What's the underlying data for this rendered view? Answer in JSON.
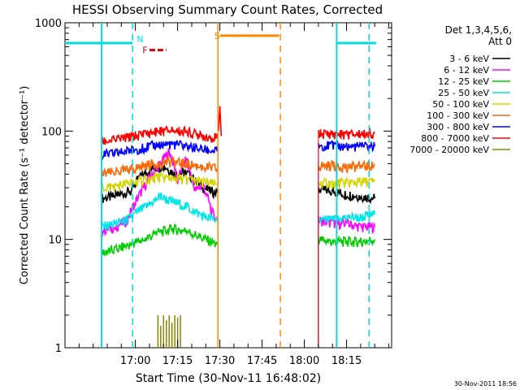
{
  "chart_data": {
    "type": "line",
    "title": "HESSI Observing Summary Count Rates, Corrected",
    "xlabel": "Start Time (30-Nov-11 16:48:02)",
    "ylabel": "Corrected Count Rate (s⁻¹ detector⁻¹)",
    "ylog": true,
    "ylim": [
      1,
      1000
    ],
    "xlim_minutes": [
      -13,
      103
    ],
    "x_ticks": [
      {
        "m": 12,
        "label": "17:00"
      },
      {
        "m": 27,
        "label": "17:15"
      },
      {
        "m": 42,
        "label": "17:30"
      },
      {
        "m": 57,
        "label": "17:45"
      },
      {
        "m": 72,
        "label": "18:00"
      },
      {
        "m": 87,
        "label": "18:15"
      }
    ],
    "y_ticks": [
      {
        "v": 1,
        "label": "1"
      },
      {
        "v": 10,
        "label": "10"
      },
      {
        "v": 100,
        "label": "100"
      },
      {
        "v": 1000,
        "label": "1000"
      }
    ],
    "legend_title": [
      "Det 1,3,4,5,6,",
      "Att 0"
    ],
    "series": [
      {
        "name": "3 - 6 keV",
        "color": "#000000",
        "segments": [
          [
            [
              0,
              24
            ],
            [
              5,
              25
            ],
            [
              10,
              28
            ],
            [
              14,
              38
            ],
            [
              18,
              45
            ],
            [
              22,
              48
            ],
            [
              26,
              40
            ],
            [
              30,
              42
            ],
            [
              34,
              33
            ],
            [
              38,
              28
            ],
            [
              41,
              27
            ]
          ],
          [
            [
              77,
              29
            ],
            [
              82,
              28
            ],
            [
              87,
              26
            ],
            [
              92,
              25
            ],
            [
              97,
              24
            ]
          ]
        ]
      },
      {
        "name": "6 - 12 keV",
        "color": "#ff00ff",
        "segments": [
          [
            [
              0,
              12
            ],
            [
              5,
              13
            ],
            [
              9,
              15
            ],
            [
              12,
              22
            ],
            [
              15,
              30
            ],
            [
              18,
              40
            ],
            [
              21,
              50
            ],
            [
              24,
              65
            ],
            [
              27,
              35
            ],
            [
              30,
              55
            ],
            [
              33,
              28
            ],
            [
              36,
              32
            ],
            [
              39,
              18
            ],
            [
              41,
              15
            ]
          ],
          [
            [
              77,
              15
            ],
            [
              82,
              14
            ],
            [
              87,
              14
            ],
            [
              92,
              13
            ],
            [
              97,
              13
            ]
          ]
        ]
      },
      {
        "name": "12 - 25 keV",
        "color": "#00cc00",
        "segments": [
          [
            [
              0,
              7.5
            ],
            [
              5,
              8
            ],
            [
              10,
              9
            ],
            [
              15,
              10
            ],
            [
              20,
              11.5
            ],
            [
              25,
              12.5
            ],
            [
              30,
              12
            ],
            [
              35,
              10.5
            ],
            [
              41,
              9
            ]
          ],
          [
            [
              77,
              10
            ],
            [
              82,
              9.5
            ],
            [
              87,
              9.5
            ],
            [
              92,
              9.5
            ],
            [
              97,
              10
            ]
          ]
        ]
      },
      {
        "name": "25 - 50 keV",
        "color": "#00e5e5",
        "segments": [
          [
            [
              0,
              13
            ],
            [
              5,
              14
            ],
            [
              9,
              15
            ],
            [
              13,
              18
            ],
            [
              17,
              21
            ],
            [
              21,
              25
            ],
            [
              25,
              22
            ],
            [
              29,
              21
            ],
            [
              33,
              18
            ],
            [
              37,
              16
            ],
            [
              41,
              15
            ]
          ],
          [
            [
              77,
              15
            ],
            [
              82,
              15
            ],
            [
              87,
              16
            ],
            [
              92,
              16
            ],
            [
              97,
              17
            ]
          ]
        ]
      },
      {
        "name": "50 - 100 keV",
        "color": "#d4d400",
        "segments": [
          [
            [
              0,
              30
            ],
            [
              5,
              31
            ],
            [
              10,
              33
            ],
            [
              15,
              35
            ],
            [
              20,
              37
            ],
            [
              25,
              37
            ],
            [
              30,
              36
            ],
            [
              35,
              34
            ],
            [
              41,
              32
            ]
          ],
          [
            [
              77,
              33
            ],
            [
              82,
              33
            ],
            [
              87,
              33
            ],
            [
              92,
              34
            ],
            [
              97,
              34
            ]
          ]
        ]
      },
      {
        "name": "100 - 300 keV",
        "color": "#ff6600",
        "segments": [
          [
            [
              0,
              40
            ],
            [
              5,
              42
            ],
            [
              10,
              44
            ],
            [
              15,
              48
            ],
            [
              20,
              51
            ],
            [
              25,
              52
            ],
            [
              30,
              50
            ],
            [
              35,
              47
            ],
            [
              41,
              45
            ]
          ],
          [
            [
              77,
              48
            ],
            [
              82,
              48
            ],
            [
              87,
              47
            ],
            [
              92,
              47
            ],
            [
              97,
              48
            ]
          ]
        ]
      },
      {
        "name": "300 - 800 keV",
        "color": "#0000ff",
        "segments": [
          [
            [
              0,
              60
            ],
            [
              5,
              62
            ],
            [
              10,
              66
            ],
            [
              15,
              70
            ],
            [
              20,
              75
            ],
            [
              25,
              76
            ],
            [
              30,
              73
            ],
            [
              35,
              68
            ],
            [
              41,
              65
            ]
          ],
          [
            [
              77,
              74
            ],
            [
              82,
              73
            ],
            [
              87,
              72
            ],
            [
              92,
              72
            ],
            [
              97,
              72
            ]
          ]
        ]
      },
      {
        "name": "800 - 7000 keV",
        "color": "#ff0000",
        "segments": [
          [
            [
              0,
              80
            ],
            [
              5,
              83
            ],
            [
              10,
              88
            ],
            [
              15,
              94
            ],
            [
              20,
              99
            ],
            [
              25,
              102
            ],
            [
              30,
              98
            ],
            [
              35,
              92
            ],
            [
              41,
              86
            ]
          ],
          [
            [
              77,
              95
            ],
            [
              82,
              94
            ],
            [
              87,
              93
            ],
            [
              92,
              94
            ],
            [
              97,
              95
            ]
          ]
        ]
      },
      {
        "name": "7000 - 20000 keV",
        "color": "#888800",
        "segments": []
      }
    ],
    "spike": {
      "color": "#ff0000",
      "x": [
        41.5,
        42,
        42.5
      ],
      "y": [
        100,
        170,
        90
      ]
    },
    "noise_bars": {
      "color": "#888800",
      "x": [
        20,
        21,
        22,
        23,
        24,
        25,
        26,
        27,
        28
      ],
      "y": [
        2,
        1.6,
        2,
        1.8,
        2,
        1.7,
        2,
        1.9,
        2
      ]
    },
    "night_lines": {
      "color": "#00dddd",
      "solid_x": [
        0,
        83.5
      ],
      "dashed_x": [
        11,
        95
      ]
    },
    "saa_lines": {
      "color": "#ff8800",
      "solid_x": [
        41.3
      ],
      "dashed_x": [
        63.5
      ]
    },
    "markers": {
      "night_bars": {
        "color": "#00dddd",
        "label": "N",
        "label_at": 12.5,
        "ranges": [
          [
            -13,
            11
          ],
          [
            83.5,
            97.5
          ]
        ],
        "y": 650
      },
      "saa_bar": {
        "color": "#ff8800",
        "label": "S",
        "label_at": 40,
        "range": [
          42,
          63
        ],
        "y": 760
      },
      "flare_bar": {
        "color": "#dd0000",
        "label": "F",
        "label_at": 14.5,
        "range": [
          17,
          23
        ],
        "y": 560
      }
    },
    "legend_position": "right"
  },
  "footer": {
    "timestamp": "30-Nov-2011 18:56"
  }
}
